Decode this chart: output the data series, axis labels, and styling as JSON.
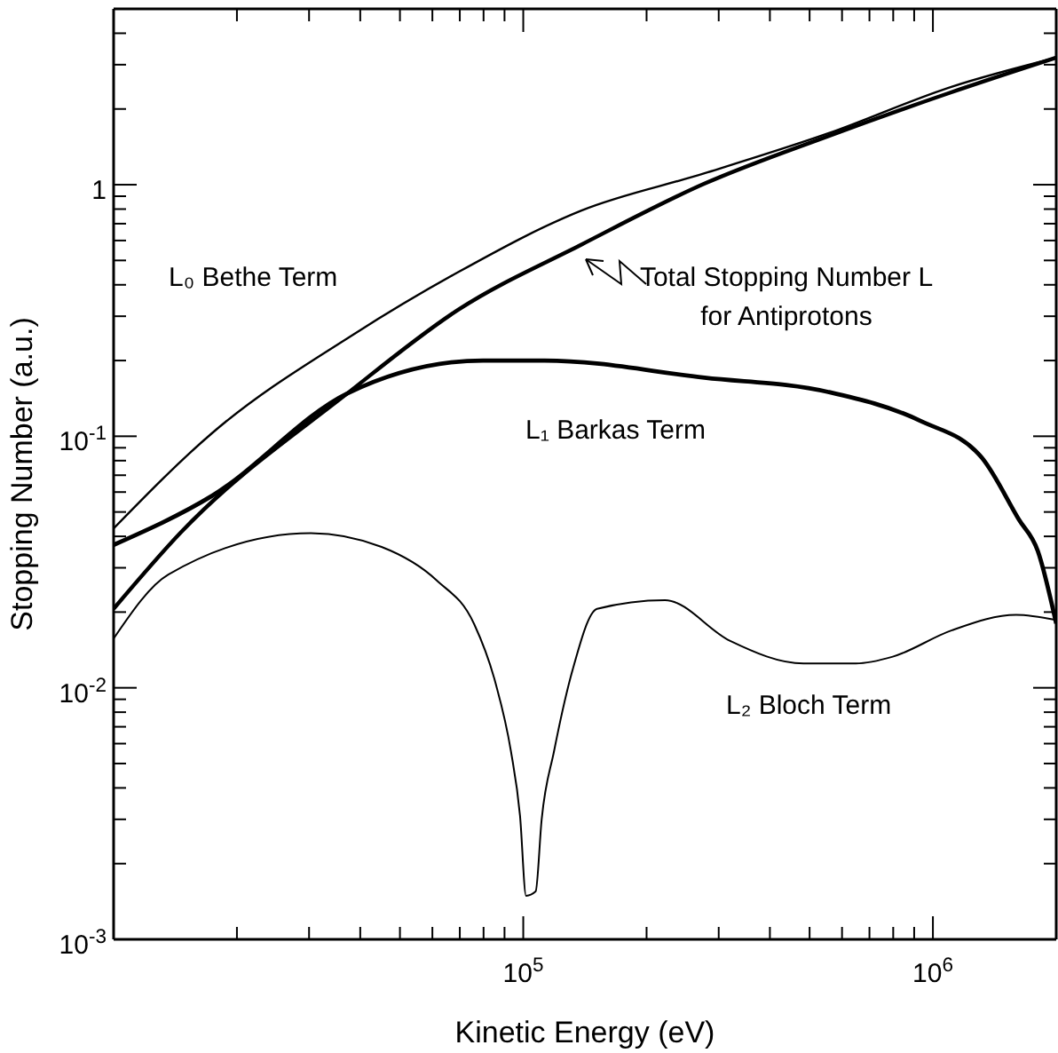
{
  "chart_data": {
    "type": "line",
    "xlabel": "Kinetic Energy (eV)",
    "ylabel": "Stopping Number (a.u.)",
    "log": "xy",
    "marker": "none",
    "xlim": [
      10000,
      2000000
    ],
    "ylim": [
      0.001,
      5
    ],
    "xticks": [
      {
        "value": 20000,
        "label": null
      },
      {
        "value": 30000,
        "label": null
      },
      {
        "value": 40000,
        "label": null
      },
      {
        "value": 50000,
        "label": null
      },
      {
        "value": 60000,
        "label": null
      },
      {
        "value": 70000,
        "label": null
      },
      {
        "value": 80000,
        "label": null
      },
      {
        "value": 90000,
        "label": null
      },
      {
        "value": 100000,
        "label": "10$^{5}$"
      },
      {
        "value": 200000,
        "label": null
      },
      {
        "value": 300000,
        "label": null
      },
      {
        "value": 400000,
        "label": null
      },
      {
        "value": 500000,
        "label": null
      },
      {
        "value": 600000,
        "label": null
      },
      {
        "value": 700000,
        "label": null
      },
      {
        "value": 800000,
        "label": null
      },
      {
        "value": 900000,
        "label": null
      },
      {
        "value": 1000000,
        "label": "10$^{6}$"
      }
    ],
    "yticks": [
      {
        "value": 0.001,
        "label": "10$^{-3}$"
      },
      {
        "value": 0.002,
        "label": null
      },
      {
        "value": 0.003,
        "label": null
      },
      {
        "value": 0.004,
        "label": null
      },
      {
        "value": 0.005,
        "label": null
      },
      {
        "value": 0.006,
        "label": null
      },
      {
        "value": 0.007,
        "label": null
      },
      {
        "value": 0.008,
        "label": null
      },
      {
        "value": 0.009,
        "label": null
      },
      {
        "value": 0.01,
        "label": "10$^{-2}$"
      },
      {
        "value": 0.02,
        "label": null
      },
      {
        "value": 0.03,
        "label": null
      },
      {
        "value": 0.04,
        "label": null
      },
      {
        "value": 0.05,
        "label": null
      },
      {
        "value": 0.06,
        "label": null
      },
      {
        "value": 0.07,
        "label": null
      },
      {
        "value": 0.08,
        "label": null
      },
      {
        "value": 0.09,
        "label": null
      },
      {
        "value": 0.1,
        "label": "10$^{-1}$"
      },
      {
        "value": 0.2,
        "label": null
      },
      {
        "value": 0.3,
        "label": null
      },
      {
        "value": 0.4,
        "label": null
      },
      {
        "value": 0.5,
        "label": null
      },
      {
        "value": 0.6,
        "label": null
      },
      {
        "value": 0.7,
        "label": null
      },
      {
        "value": 0.8,
        "label": null
      },
      {
        "value": 0.9,
        "label": null
      },
      1,
      {
        "value": 2,
        "label": null
      },
      {
        "value": 3,
        "label": null
      },
      {
        "value": 4,
        "label": null
      }
    ],
    "series": [
      {
        "name": "L₀ Bethe Term",
        "color": "#000000",
        "x": [
          10000,
          17400,
          38500,
          69500,
          138700,
          277000,
          555000,
          1109000,
          2000000
        ],
        "values": [
          0.043,
          0.103,
          0.254,
          0.45,
          0.79,
          1.11,
          1.6,
          2.45,
          3.2
        ]
      },
      {
        "name": "Total Stopping Number L\nfor Antiprotons",
        "color": "#000000",
        "x": [
          10000,
          14600,
          37200,
          69500,
          138700,
          277000,
          555000,
          1100000,
          2000000
        ],
        "values": [
          0.0206,
          0.0415,
          0.148,
          0.319,
          0.578,
          1.01,
          1.56,
          2.32,
          3.2
        ]
      },
      {
        "name": "L₁ Barkas Term",
        "color": "#000000",
        "x": [
          10000,
          17400,
          37200,
          79800,
          112700,
          277000,
          555000,
          933000,
          1318000,
          1622000,
          1803000,
          2000000
        ],
        "values": [
          0.037,
          0.058,
          0.148,
          0.2,
          0.2,
          0.171,
          0.15,
          0.115,
          0.082,
          0.0466,
          0.035,
          0.018
        ]
      },
      {
        "name": "L₂ Bloch Term",
        "color": "#000000",
        "x": [
          10000,
          13600,
          30300,
          45100,
          61500,
          75900,
          85500,
          93300,
          98200,
          101600,
          107200,
          110900,
          118900,
          131800,
          151400,
          221800,
          319200,
          483100,
          648600,
          798000,
          1109000,
          1596000,
          2000000
        ],
        "values": [
          0.0157,
          0.0282,
          0.0412,
          0.0363,
          0.0267,
          0.0179,
          0.0105,
          0.0056,
          0.0031,
          0.00149,
          0.00155,
          0.003,
          0.0056,
          0.0117,
          0.0206,
          0.0223,
          0.0154,
          0.0125,
          0.0125,
          0.0133,
          0.0169,
          0.0195,
          0.0186
        ]
      }
    ]
  }
}
